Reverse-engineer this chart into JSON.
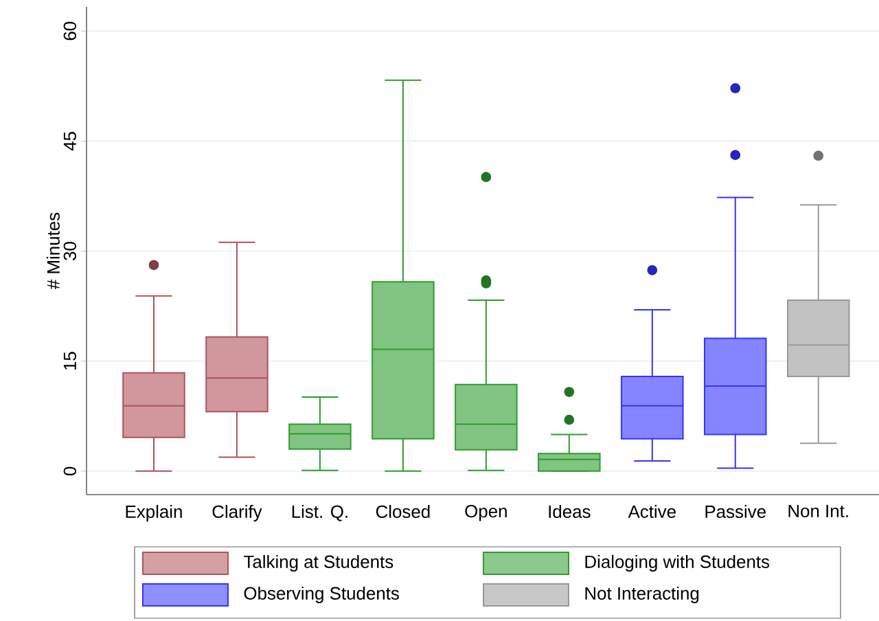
{
  "chart_data": {
    "type": "box",
    "ylabel": "# Minutes",
    "categories": [
      "Explain",
      "Clarify",
      "List. Q.",
      "Closed",
      "Open",
      "Ideas",
      "Active",
      "Passive",
      "Non Int."
    ],
    "series": [
      {
        "name": "Talking at Students",
        "color": "#b0525a",
        "boxes": [
          {
            "low": 0,
            "q1": 4.6,
            "median": 8.9,
            "q3": 13.4,
            "high": 23.9,
            "outliers": [
              28.1
            ]
          },
          {
            "low": 1.9,
            "q1": 8.1,
            "median": 12.7,
            "q3": 18.3,
            "high": 31.2
          },
          null,
          null,
          null,
          null,
          null,
          null,
          null
        ]
      },
      {
        "name": "Dialoging with Students",
        "color": "#2e9c2e",
        "boxes": [
          null,
          null,
          {
            "low": 0.1,
            "q1": 3.0,
            "median": 5.1,
            "q3": 6.4,
            "high": 10.1
          },
          {
            "low": 0,
            "q1": 4.4,
            "median": 16.6,
            "q3": 25.8,
            "high": 53.3
          },
          {
            "low": 0.1,
            "q1": 2.9,
            "median": 6.4,
            "q3": 11.8,
            "high": 23.3,
            "outliers": [
              40.1,
              26.0,
              25.6
            ]
          },
          {
            "low": 0,
            "q1": 0,
            "median": 1.6,
            "q3": 2.4,
            "high": 5.0,
            "outliers": [
              10.8,
              7.0
            ]
          },
          null,
          null,
          null
        ]
      },
      {
        "name": "Observing Students",
        "color": "#3333ff",
        "boxes": [
          null,
          null,
          null,
          null,
          null,
          null,
          {
            "low": 1.4,
            "q1": 4.4,
            "median": 8.9,
            "q3": 12.9,
            "high": 22.0,
            "outliers": [
              27.4
            ]
          },
          {
            "low": 0.4,
            "q1": 5.0,
            "median": 11.6,
            "q3": 18.1,
            "high": 37.3,
            "outliers": [
              52.2,
              43.1
            ]
          },
          null
        ]
      },
      {
        "name": "Not Interacting",
        "color": "#999999",
        "boxes": [
          null,
          null,
          null,
          null,
          null,
          null,
          null,
          null,
          {
            "low": 3.8,
            "q1": 12.9,
            "median": 17.2,
            "q3": 23.3,
            "high": 36.3,
            "outliers": [
              43.0
            ]
          }
        ]
      }
    ],
    "ylim": [
      -3.2,
      63.3
    ],
    "yticks": [
      0,
      15,
      30,
      45,
      60
    ],
    "grid": "y",
    "legend": "bottom"
  }
}
